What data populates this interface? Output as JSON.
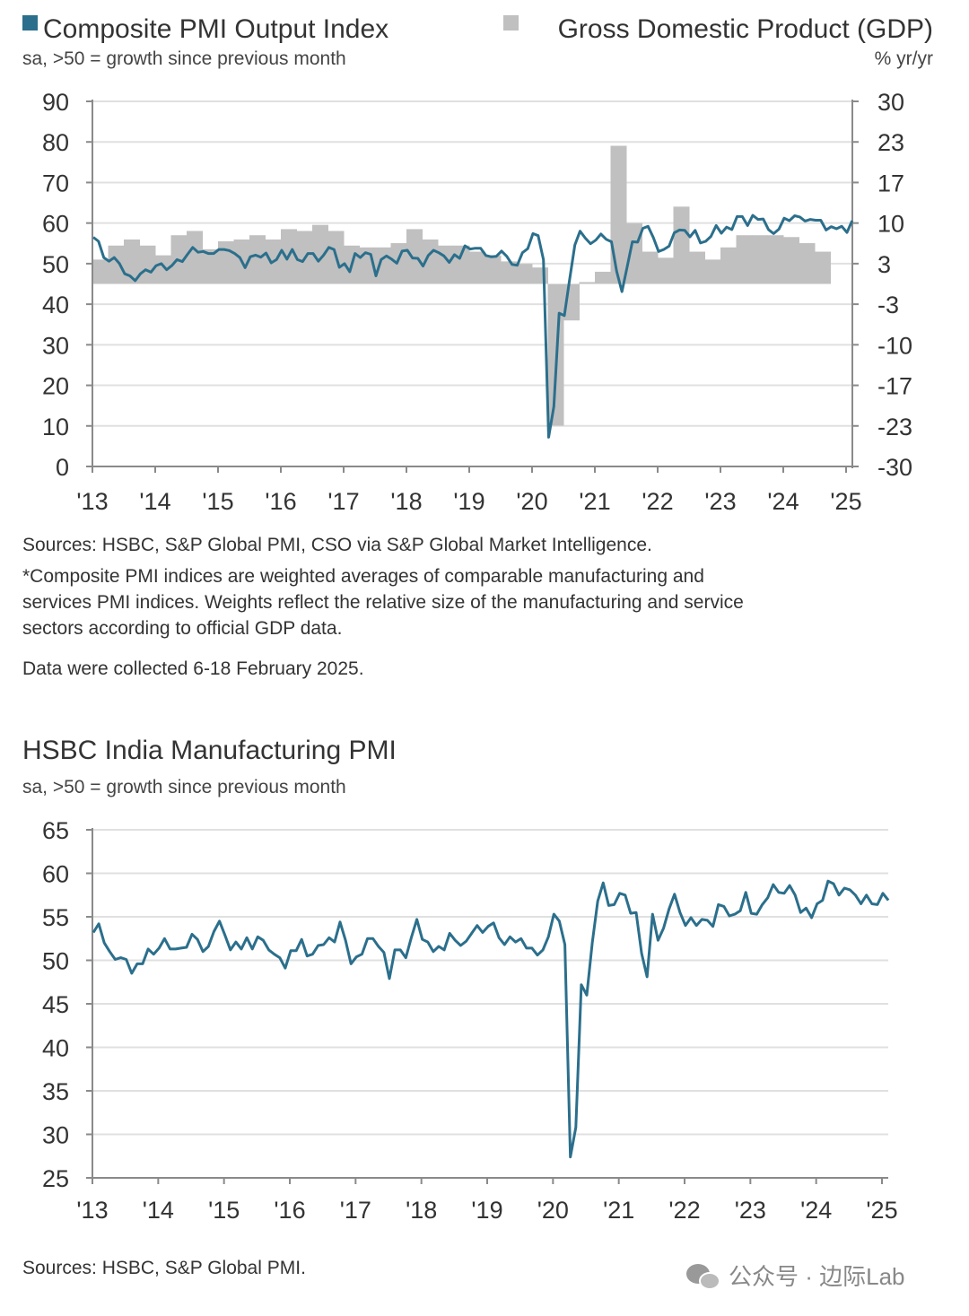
{
  "colors": {
    "pmi_line": "#2b6f8c",
    "gdp_bar": "#c0c0c0",
    "grid": "#e0e0e0",
    "axis": "#8a8a8a"
  },
  "chart_data": [
    {
      "type": "bar+line",
      "legend": [
        {
          "name": "Composite PMI Output Index",
          "icon": "teal-square-icon"
        },
        {
          "name": "Gross Domestic Product (GDP)",
          "icon": "gray-square-icon"
        }
      ],
      "left_subtitle": "sa, >50 = growth since previous month",
      "right_subtitle": "% yr/yr",
      "left_axis": {
        "ylim": [
          0,
          90
        ],
        "ticks": [
          "90",
          "80",
          "70",
          "60",
          "50",
          "40",
          "30",
          "20",
          "10",
          "0"
        ]
      },
      "right_axis": {
        "ylim": [
          -30,
          30
        ],
        "ticks": [
          "30",
          "23",
          "17",
          "10",
          "3",
          "-3",
          "-10",
          "-17",
          "-23",
          "-30"
        ]
      },
      "x_ticks": [
        "'13",
        "'14",
        "'15",
        "'16",
        "'17",
        "'18",
        "'19",
        "'20",
        "'21",
        "'22",
        "'23",
        "'24",
        "'25"
      ],
      "grid": true,
      "series": [
        {
          "name": "Composite PMI Output Index",
          "type": "line",
          "start": "2013-01",
          "frequency": "monthly",
          "values": [
            56.5,
            55.5,
            51.5,
            50.6,
            51.5,
            50,
            47.5,
            47,
            45.8,
            47.5,
            48.5,
            47.9,
            49.5,
            50,
            48.5,
            49.5,
            51,
            50.5,
            52.3,
            54,
            52.8,
            53,
            52.5,
            52.5,
            53.5,
            53.5,
            53.2,
            52.5,
            51.5,
            49,
            51.7,
            52.1,
            51.6,
            52.6,
            50.2,
            51,
            53.3,
            51.1,
            53.5,
            51,
            50.5,
            52.5,
            52.5,
            50.6,
            52.1,
            54,
            53.5,
            49.1,
            50,
            48,
            52.5,
            51.5,
            52.7,
            52.3,
            47,
            51,
            51.9,
            51.1,
            50.1,
            53.1,
            53.3,
            51.4,
            51.3,
            49.4,
            52,
            53.3,
            52.7,
            51.9,
            50.3,
            52.2,
            51.3,
            54.4,
            53.6,
            53.8,
            53.8,
            52,
            51.7,
            51.8,
            53.1,
            51.8,
            49.8,
            49.6,
            52.7,
            53.7,
            57.4,
            56.9,
            51,
            7.2,
            14.8,
            37.8,
            37.2,
            46,
            54.6,
            58,
            56.3,
            54.9,
            55.8,
            57.3,
            56,
            55.4,
            48.1,
            43.1,
            49.2,
            55.4,
            55.3,
            58.7,
            59.2,
            56.4,
            53,
            53.5,
            54.3,
            57.6,
            58.3,
            58.2,
            56.6,
            58.2,
            55.1,
            55.5,
            56.7,
            59.4,
            57.5,
            59,
            58.4,
            61.6,
            61.6,
            59.4,
            61.9,
            60.9,
            61,
            58.4,
            57.4,
            58.5,
            61.2,
            60.6,
            61.8,
            61.5,
            60.5,
            60.9,
            60.7,
            60.7,
            58.3,
            59.1,
            58.6,
            59.2,
            57.7,
            60.6
          ]
        },
        {
          "name": "Gross Domestic Product (GDP)",
          "type": "bar",
          "axis": "right",
          "start": "2013-Q1",
          "frequency": "quarterly",
          "values": [
            4,
            6.3,
            7.3,
            6.3,
            4.7,
            8,
            8.7,
            5.7,
            7,
            7.3,
            8,
            7.3,
            9,
            8.7,
            9.7,
            8.7,
            6.3,
            6,
            6,
            6.7,
            9,
            7.3,
            6.3,
            6.3,
            5.3,
            4.7,
            3.7,
            3.3,
            2.7,
            -23.3,
            -6,
            0.3,
            2,
            22.7,
            10,
            5.3,
            4.3,
            12.7,
            5.3,
            4,
            6,
            8,
            8,
            8,
            7.7,
            6.7,
            5.3
          ]
        }
      ]
    },
    {
      "type": "line",
      "title": "HSBC India Manufacturing PMI",
      "subtitle": "sa, >50 = growth since previous month",
      "ylim": [
        25,
        65
      ],
      "y_ticks": [
        "65",
        "60",
        "55",
        "50",
        "45",
        "40",
        "35",
        "30",
        "25"
      ],
      "x_ticks": [
        "'13",
        "'14",
        "'15",
        "'16",
        "'17",
        "'18",
        "'19",
        "'20",
        "'21",
        "'22",
        "'23",
        "'24",
        "'25"
      ],
      "grid": true,
      "series": [
        {
          "name": "HSBC India Manufacturing PMI",
          "start": "2013-01",
          "frequency": "monthly",
          "values": [
            53.2,
            54.2,
            52,
            51,
            50.1,
            50.3,
            50.1,
            48.5,
            49.6,
            49.6,
            51.3,
            50.7,
            51.4,
            52.5,
            51.3,
            51.3,
            51.4,
            51.5,
            53,
            52.4,
            51,
            51.6,
            53.3,
            54.5,
            52.9,
            51.2,
            52.1,
            51.3,
            52.6,
            51.3,
            52.7,
            52.3,
            51.2,
            50.7,
            50.3,
            49.1,
            51.1,
            51.1,
            52.4,
            50.5,
            50.7,
            51.7,
            51.8,
            52.6,
            52.1,
            54.4,
            52.3,
            49.6,
            50.4,
            50.7,
            52.5,
            52.5,
            51.6,
            50.9,
            47.9,
            51.2,
            51.2,
            50.3,
            52.6,
            54.7,
            52.4,
            52.1,
            51,
            51.6,
            51.2,
            53.1,
            52.3,
            51.7,
            52.2,
            53.1,
            54,
            53.2,
            53.9,
            54.3,
            52.6,
            51.8,
            52.7,
            52.1,
            52.5,
            51.4,
            51.4,
            50.6,
            51.2,
            52.7,
            55.3,
            54.5,
            51.8,
            27.4,
            30.8,
            47.2,
            46,
            52,
            56.8,
            58.9,
            56.3,
            56.4,
            57.7,
            57.5,
            55.4,
            55.5,
            50.8,
            48.1,
            55.3,
            52.3,
            53.7,
            55.9,
            57.6,
            55.5,
            54,
            54.9,
            54,
            54.7,
            54.6,
            53.9,
            56.4,
            56.2,
            55.1,
            55.3,
            55.7,
            57.8,
            55.4,
            55.3,
            56.4,
            57.2,
            58.7,
            57.8,
            57.7,
            58.6,
            57.5,
            55.5,
            56,
            54.9,
            56.5,
            56.9,
            59.1,
            58.8,
            57.5,
            58.3,
            58.1,
            57.5,
            56.5,
            57.5,
            56.5,
            56.4,
            57.7,
            56.9
          ]
        }
      ]
    }
  ],
  "notes": {
    "sources1": "Sources: HSBC, S&P Global PMI, CSO via S&P Global Market Intelligence.",
    "footnote_lines": [
      "*Composite PMI indices are weighted averages of comparable manufacturing and",
      "services PMI indices. Weights reflect the relative size of the manufacturing and service",
      "sectors according to official GDP data."
    ],
    "collected": "Data were collected 6-18 February 2025.",
    "sources2": "Sources: HSBC, S&P Global PMI."
  },
  "watermark": {
    "text": "公众号 · 边际Lab",
    "icon": "wechat-icon"
  }
}
